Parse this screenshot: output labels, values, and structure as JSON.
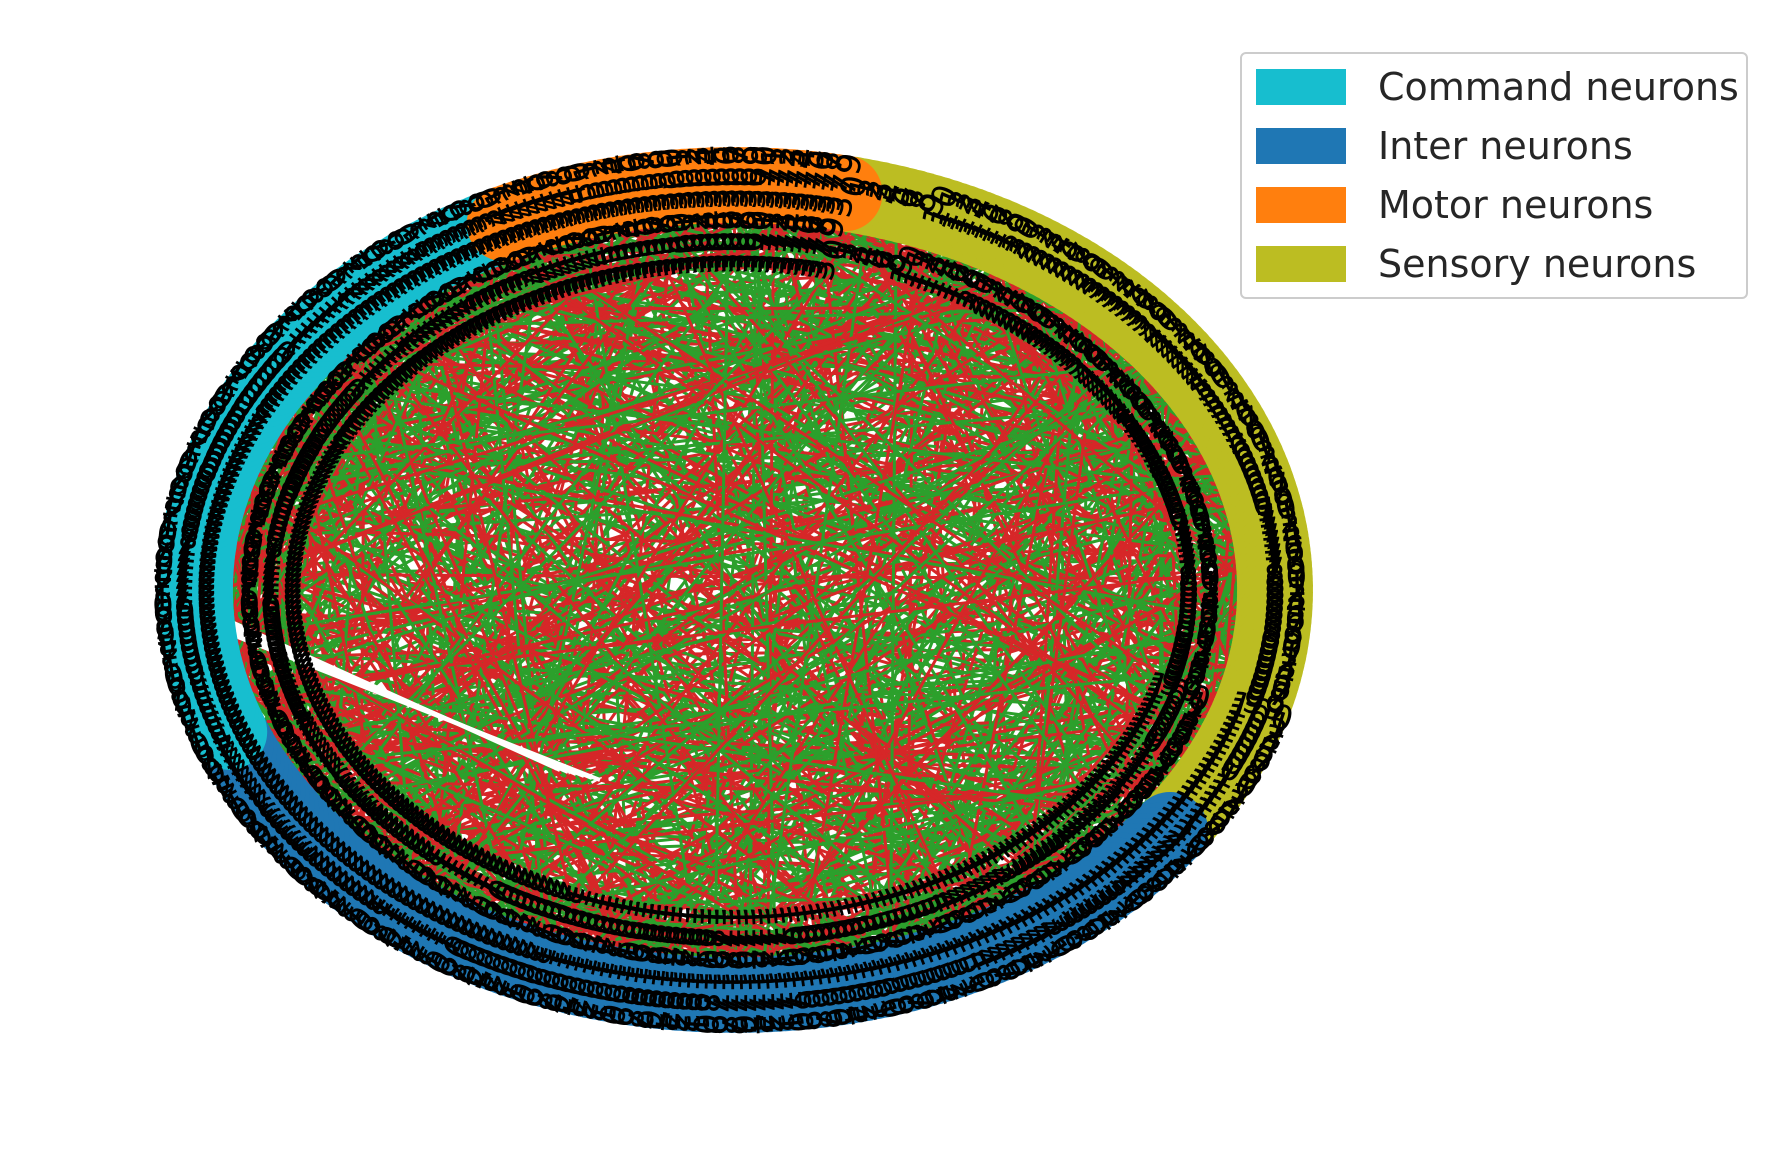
{
  "colors": {
    "command": "#17becf",
    "inter": "#1f77b4",
    "motor": "#ff7f0e",
    "sensory": "#bcbd22",
    "edge_excitatory": "#2ca02c",
    "edge_inhibitory": "#d62728",
    "label": "#000000"
  },
  "legend": {
    "items": [
      {
        "label": "Command neurons",
        "color": "#17becf"
      },
      {
        "label": "Inter neurons",
        "color": "#1f77b4"
      },
      {
        "label": "Motor neurons",
        "color": "#ff7f0e"
      },
      {
        "label": "Sensory neurons",
        "color": "#bcbd22"
      }
    ]
  },
  "graph": {
    "layout": "ellipse",
    "groups": [
      {
        "name": "Sensory neurons",
        "color": "#bcbd22",
        "count": 120
      },
      {
        "name": "Inter neurons",
        "color": "#1f77b4",
        "count": 130
      },
      {
        "name": "Command neurons",
        "color": "#17becf",
        "count": 90
      },
      {
        "name": "Motor neurons",
        "color": "#ff7f0e",
        "count": 40
      }
    ],
    "edge_colors": [
      "#2ca02c",
      "#d62728"
    ]
  }
}
